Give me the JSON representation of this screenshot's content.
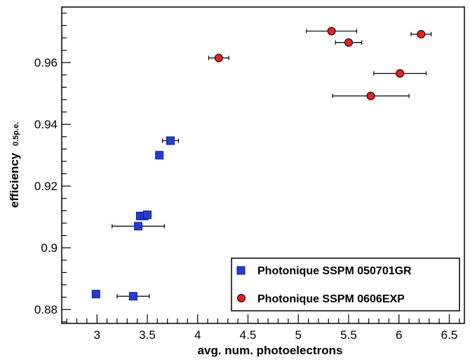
{
  "chart_data": {
    "type": "scatter",
    "xlabel": "avg. num. photoelectrons",
    "ylabel": "efficiency",
    "ylabel_subscript": "0.5p.e.",
    "xlim": [
      2.65,
      6.65
    ],
    "ylim": [
      0.8755,
      0.978
    ],
    "x_ticks": [
      3,
      3.5,
      4,
      4.5,
      5,
      5.5,
      6,
      6.5
    ],
    "x_tick_labels": [
      "3",
      "3.5",
      "4",
      "4.5",
      "5",
      "5.5",
      "6",
      "6.5"
    ],
    "y_ticks": [
      0.88,
      0.9,
      0.92,
      0.94,
      0.96
    ],
    "y_tick_labels": [
      "0.88",
      "0.9",
      "0.92",
      "0.94",
      "0.96"
    ],
    "grid": false,
    "legend_position": "bottom-right",
    "series": [
      {
        "name": "Photonique SSPM 050701GR",
        "marker": "square",
        "color": "#1f3fd8",
        "points": [
          {
            "x": 2.99,
            "y": 0.885,
            "xerr": 0
          },
          {
            "x": 3.36,
            "y": 0.8843,
            "xerr": 0.16
          },
          {
            "x": 3.41,
            "y": 0.907,
            "xerr": 0.26
          },
          {
            "x": 3.43,
            "y": 0.9103,
            "xerr": 0
          },
          {
            "x": 3.47,
            "y": 0.9103,
            "xerr": 0
          },
          {
            "x": 3.5,
            "y": 0.9107,
            "xerr": 0
          },
          {
            "x": 3.62,
            "y": 0.93,
            "xerr": 0
          },
          {
            "x": 3.73,
            "y": 0.9347,
            "xerr": 0.08
          }
        ]
      },
      {
        "name": "Photonique SSPM 0606EXP",
        "marker": "circle",
        "color": "#e8211d",
        "points": [
          {
            "x": 4.21,
            "y": 0.9615,
            "xerr": 0.1
          },
          {
            "x": 5.33,
            "y": 0.9702,
            "xerr": 0.25
          },
          {
            "x": 5.5,
            "y": 0.9665,
            "xerr": 0.13
          },
          {
            "x": 5.72,
            "y": 0.9492,
            "xerr": 0.38
          },
          {
            "x": 6.01,
            "y": 0.9565,
            "xerr": 0.26
          },
          {
            "x": 6.22,
            "y": 0.9692,
            "xerr": 0.1
          }
        ]
      }
    ]
  }
}
